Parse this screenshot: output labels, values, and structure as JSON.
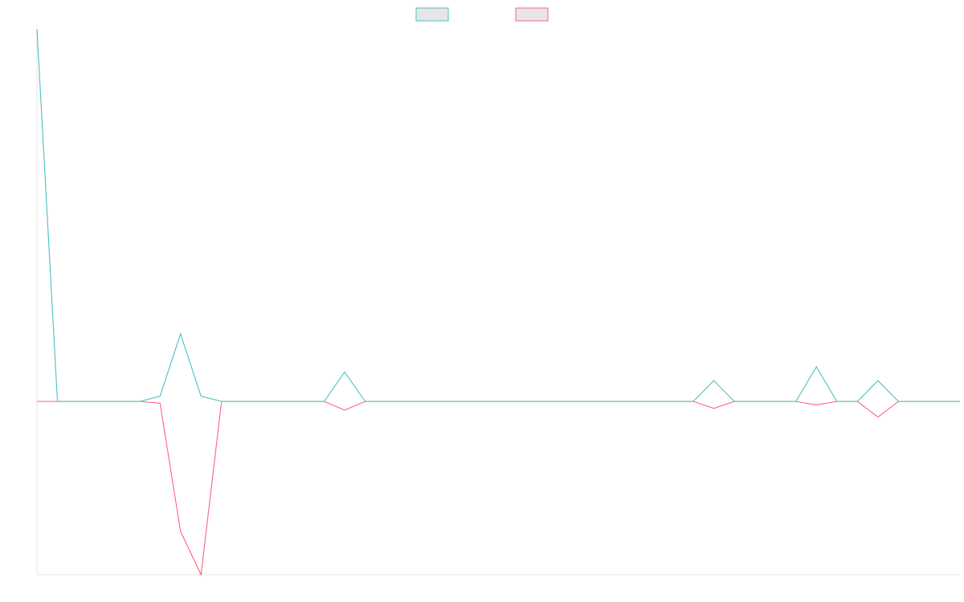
{
  "chart_data": {
    "type": "line",
    "title": "",
    "xlabel": "",
    "ylabel": "",
    "grid": false,
    "legend_placement": "top-center",
    "x_count": 46,
    "ylim": [
      -100,
      215
    ],
    "series": [
      {
        "name": "",
        "color": "#4bc0c0",
        "fill": "#e6e6e6",
        "values": [
          215,
          0,
          0,
          0,
          0,
          0,
          3,
          39,
          3,
          0,
          0,
          0,
          0,
          0,
          0,
          17,
          0,
          0,
          0,
          0,
          0,
          0,
          0,
          0,
          0,
          0,
          0,
          0,
          0,
          0,
          0,
          0,
          0,
          12,
          0,
          0,
          0,
          0,
          20,
          0,
          0,
          12,
          0,
          0,
          0,
          0
        ]
      },
      {
        "name": "",
        "color": "#ff6384",
        "fill": "#e6e6e6",
        "values": [
          0,
          0,
          0,
          0,
          0,
          0,
          -1,
          -75,
          -100,
          0,
          0,
          0,
          0,
          0,
          0,
          -5,
          0,
          0,
          0,
          0,
          0,
          0,
          0,
          0,
          0,
          0,
          0,
          0,
          0,
          0,
          0,
          0,
          0,
          -4,
          0,
          0,
          0,
          0,
          -2,
          0,
          0,
          -9,
          0,
          0,
          0,
          0
        ]
      }
    ]
  }
}
